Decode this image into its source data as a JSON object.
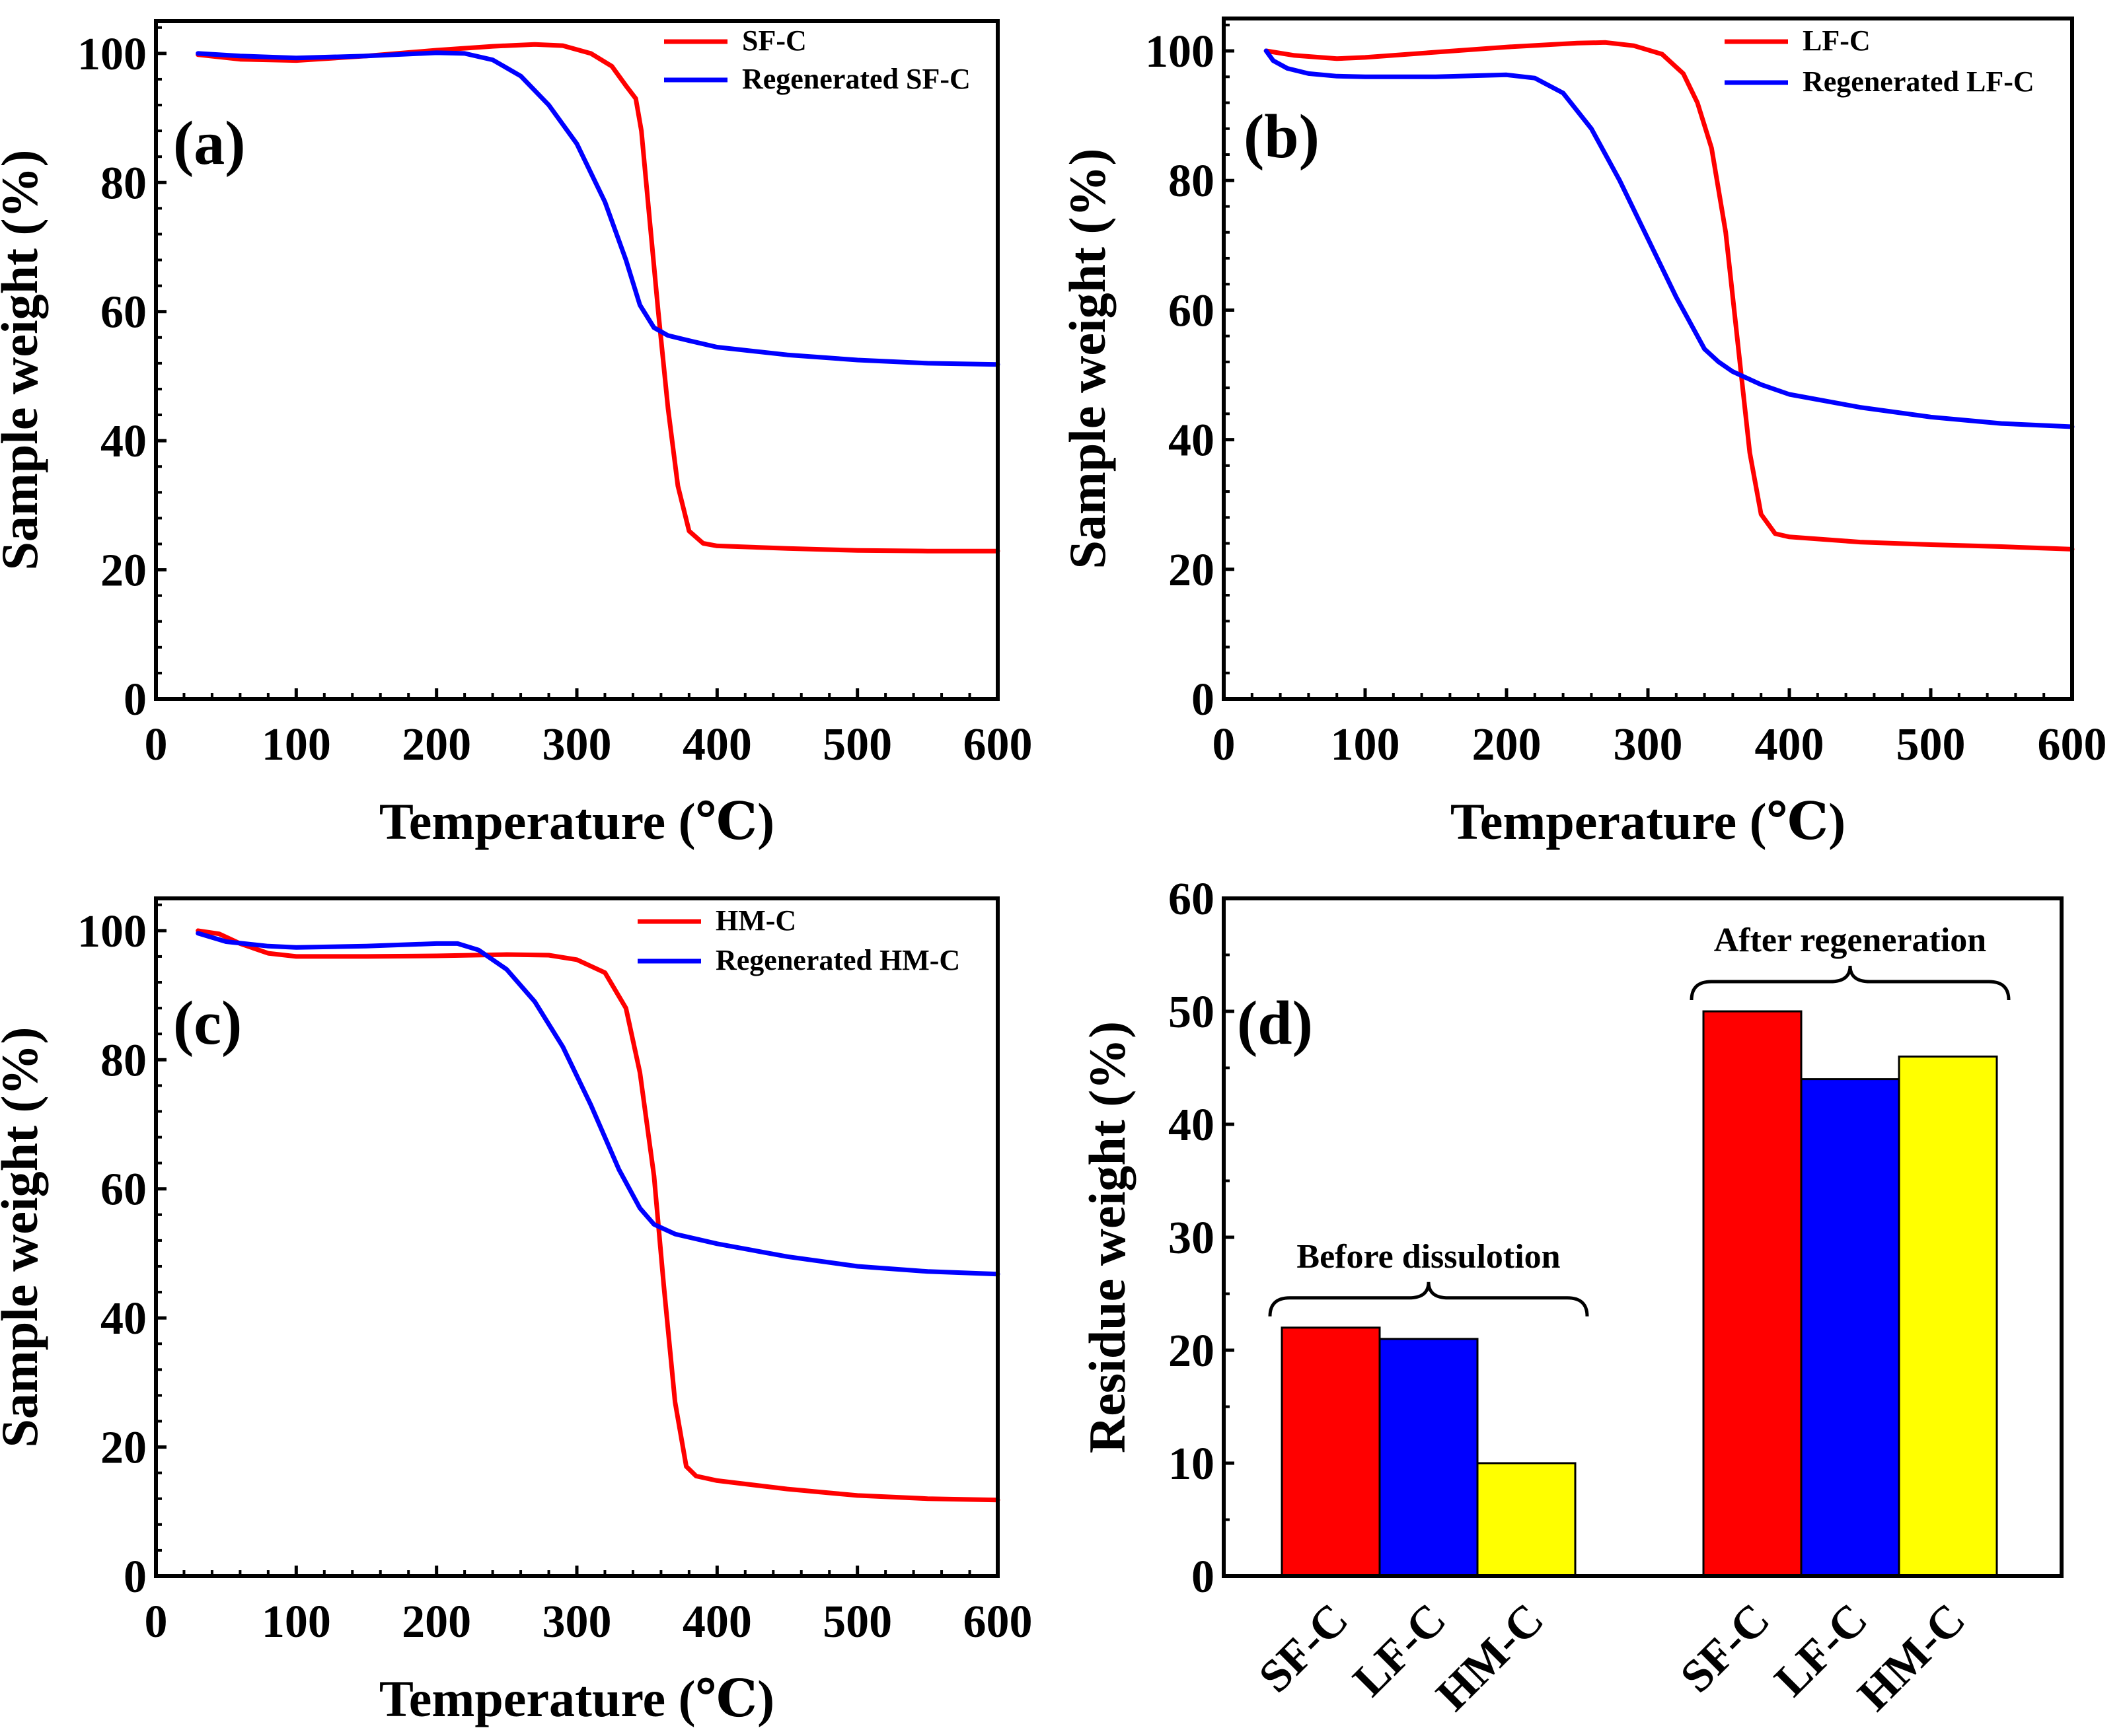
{
  "figure": {
    "panel_labels": [
      "(a)",
      "(b)",
      "(c)",
      "(d)"
    ]
  },
  "chart_data": [
    {
      "type": "line",
      "panel": "(a)",
      "xlabel": "Temperature (℃)",
      "ylabel": "Sample weight (%)",
      "xlim": [
        0,
        600
      ],
      "ylim": [
        0,
        105
      ],
      "xticks": [
        0,
        100,
        200,
        300,
        400,
        500,
        600
      ],
      "yticks": [
        0,
        20,
        40,
        60,
        80,
        100
      ],
      "legend_position": "top-right",
      "series": [
        {
          "name": "SF-C",
          "color": "#ff0000",
          "x": [
            30,
            60,
            100,
            150,
            200,
            240,
            270,
            290,
            310,
            325,
            335,
            342,
            346,
            352,
            358,
            365,
            372,
            380,
            390,
            400,
            450,
            500,
            550,
            600
          ],
          "y": [
            99.8,
            99.1,
            98.9,
            99.6,
            100.5,
            101.1,
            101.4,
            101.2,
            100.0,
            98.0,
            95.0,
            93.0,
            88.0,
            74.0,
            60.0,
            45.0,
            33.0,
            26.0,
            24.1,
            23.7,
            23.3,
            23.0,
            22.9,
            22.9
          ]
        },
        {
          "name": "Regenerated  SF-C",
          "color": "#0000ff",
          "x": [
            30,
            60,
            100,
            150,
            200,
            220,
            240,
            260,
            280,
            300,
            320,
            335,
            345,
            355,
            365,
            380,
            400,
            450,
            500,
            550,
            600
          ],
          "y": [
            100.0,
            99.6,
            99.3,
            99.6,
            100.1,
            100.0,
            99.0,
            96.5,
            92.0,
            86.0,
            77.0,
            68.0,
            61.0,
            57.5,
            56.3,
            55.5,
            54.5,
            53.3,
            52.5,
            52.0,
            51.8
          ]
        }
      ]
    },
    {
      "type": "line",
      "panel": "(b)",
      "xlabel": "Temperature (℃)",
      "ylabel": "Sample weight (%)",
      "xlim": [
        0,
        600
      ],
      "ylim": [
        0,
        105
      ],
      "xticks": [
        0,
        100,
        200,
        300,
        400,
        500,
        600
      ],
      "yticks": [
        0,
        20,
        40,
        60,
        80,
        100
      ],
      "legend_position": "top-right",
      "series": [
        {
          "name": "LF-C",
          "color": "#ff0000",
          "x": [
            30,
            50,
            80,
            100,
            150,
            200,
            250,
            270,
            290,
            310,
            325,
            335,
            345,
            355,
            365,
            372,
            380,
            390,
            400,
            450,
            500,
            550,
            600
          ],
          "y": [
            100.0,
            99.3,
            98.8,
            99.0,
            99.8,
            100.6,
            101.2,
            101.3,
            100.8,
            99.5,
            96.5,
            92.0,
            85.0,
            72.0,
            52.0,
            38.0,
            28.5,
            25.5,
            25.0,
            24.2,
            23.8,
            23.5,
            23.1
          ]
        },
        {
          "name": "Regenerated LF-C",
          "color": "#0000ff",
          "x": [
            30,
            35,
            45,
            60,
            80,
            100,
            150,
            200,
            220,
            240,
            260,
            280,
            300,
            320,
            340,
            350,
            360,
            380,
            400,
            450,
            500,
            550,
            600
          ],
          "y": [
            100.0,
            98.5,
            97.3,
            96.5,
            96.1,
            96.0,
            96.0,
            96.3,
            95.8,
            93.5,
            88.0,
            80.0,
            71.0,
            62.0,
            54.0,
            52.0,
            50.5,
            48.5,
            47.0,
            45.0,
            43.5,
            42.5,
            42.0
          ]
        }
      ]
    },
    {
      "type": "line",
      "panel": "(c)",
      "xlabel": "Temperature (℃)",
      "ylabel": "Sample weight (%)",
      "xlim": [
        0,
        600
      ],
      "ylim": [
        0,
        105
      ],
      "xticks": [
        0,
        100,
        200,
        300,
        400,
        500,
        600
      ],
      "yticks": [
        0,
        20,
        40,
        60,
        80,
        100
      ],
      "legend_position": "top-right",
      "series": [
        {
          "name": "HM-C",
          "color": "#ff0000",
          "x": [
            30,
            45,
            60,
            80,
            100,
            150,
            200,
            250,
            280,
            300,
            320,
            335,
            345,
            355,
            362,
            370,
            378,
            385,
            400,
            450,
            500,
            550,
            600
          ],
          "y": [
            100.0,
            99.5,
            98.0,
            96.5,
            96.0,
            96.0,
            96.1,
            96.3,
            96.2,
            95.5,
            93.5,
            88.0,
            78.0,
            62.0,
            45.0,
            27.0,
            17.0,
            15.5,
            14.8,
            13.5,
            12.5,
            12.0,
            11.8
          ]
        },
        {
          "name": "Regenerated HM-C",
          "color": "#0000ff",
          "x": [
            30,
            50,
            80,
            100,
            150,
            200,
            215,
            230,
            250,
            270,
            290,
            310,
            330,
            345,
            355,
            370,
            400,
            450,
            500,
            550,
            600
          ],
          "y": [
            99.6,
            98.3,
            97.6,
            97.4,
            97.6,
            98.0,
            98.0,
            97.0,
            94.0,
            89.0,
            82.0,
            73.0,
            63.0,
            57.0,
            54.5,
            53.0,
            51.5,
            49.5,
            48.0,
            47.2,
            46.8
          ]
        }
      ]
    },
    {
      "type": "bar",
      "panel": "(d)",
      "xlabel": "",
      "ylabel": "Residue weight  (%)",
      "ylim": [
        0,
        60
      ],
      "yticks": [
        0,
        10,
        20,
        30,
        40,
        50,
        60
      ],
      "groups": [
        {
          "label": "Before dissulotion",
          "categories": [
            "SF-C",
            "LF-C",
            "HM-C"
          ],
          "values": [
            22,
            21,
            10
          ],
          "colors": [
            "#ff0000",
            "#0000ff",
            "#ffff00"
          ]
        },
        {
          "label": "After regeneration",
          "categories": [
            "SF-C",
            "LF-C",
            "HM-C"
          ],
          "values": [
            50,
            44,
            46
          ],
          "colors": [
            "#ff0000",
            "#0000ff",
            "#ffff00"
          ]
        }
      ]
    }
  ]
}
